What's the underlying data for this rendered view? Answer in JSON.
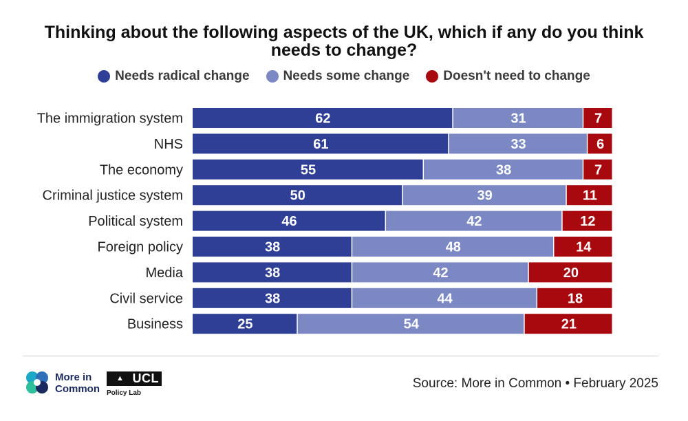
{
  "title": "Thinking about the following aspects of the UK, which if any do you think needs to change?",
  "legend": [
    {
      "label": "Needs radical change",
      "color": "#2f3f96"
    },
    {
      "label": "Needs some change",
      "color": "#7b88c4"
    },
    {
      "label": "Doesn't need to change",
      "color": "#a8090f"
    }
  ],
  "chart_data": {
    "type": "bar",
    "orientation": "horizontal",
    "stacked": true,
    "title": "Thinking about the following aspects of the UK, which if any do you think needs to change?",
    "xlim": [
      0,
      100
    ],
    "categories": [
      "The immigration system",
      "NHS",
      "The economy",
      "Criminal justice system",
      "Political system",
      "Foreign policy",
      "Media",
      "Civil service",
      "Business"
    ],
    "series": [
      {
        "name": "Needs radical change",
        "color": "#2f3f96",
        "values": [
          62,
          61,
          55,
          50,
          46,
          38,
          38,
          38,
          25
        ]
      },
      {
        "name": "Needs some change",
        "color": "#7b88c4",
        "values": [
          31,
          33,
          38,
          39,
          42,
          48,
          42,
          44,
          54
        ]
      },
      {
        "name": "Doesn't need to change",
        "color": "#a8090f",
        "values": [
          7,
          6,
          7,
          11,
          12,
          14,
          20,
          18,
          21
        ]
      }
    ]
  },
  "footer": {
    "org_name": "More in Common",
    "ucl_label": "UCL",
    "ucl_sub": "Policy Lab",
    "source": "Source: More in Common • February 2025"
  }
}
